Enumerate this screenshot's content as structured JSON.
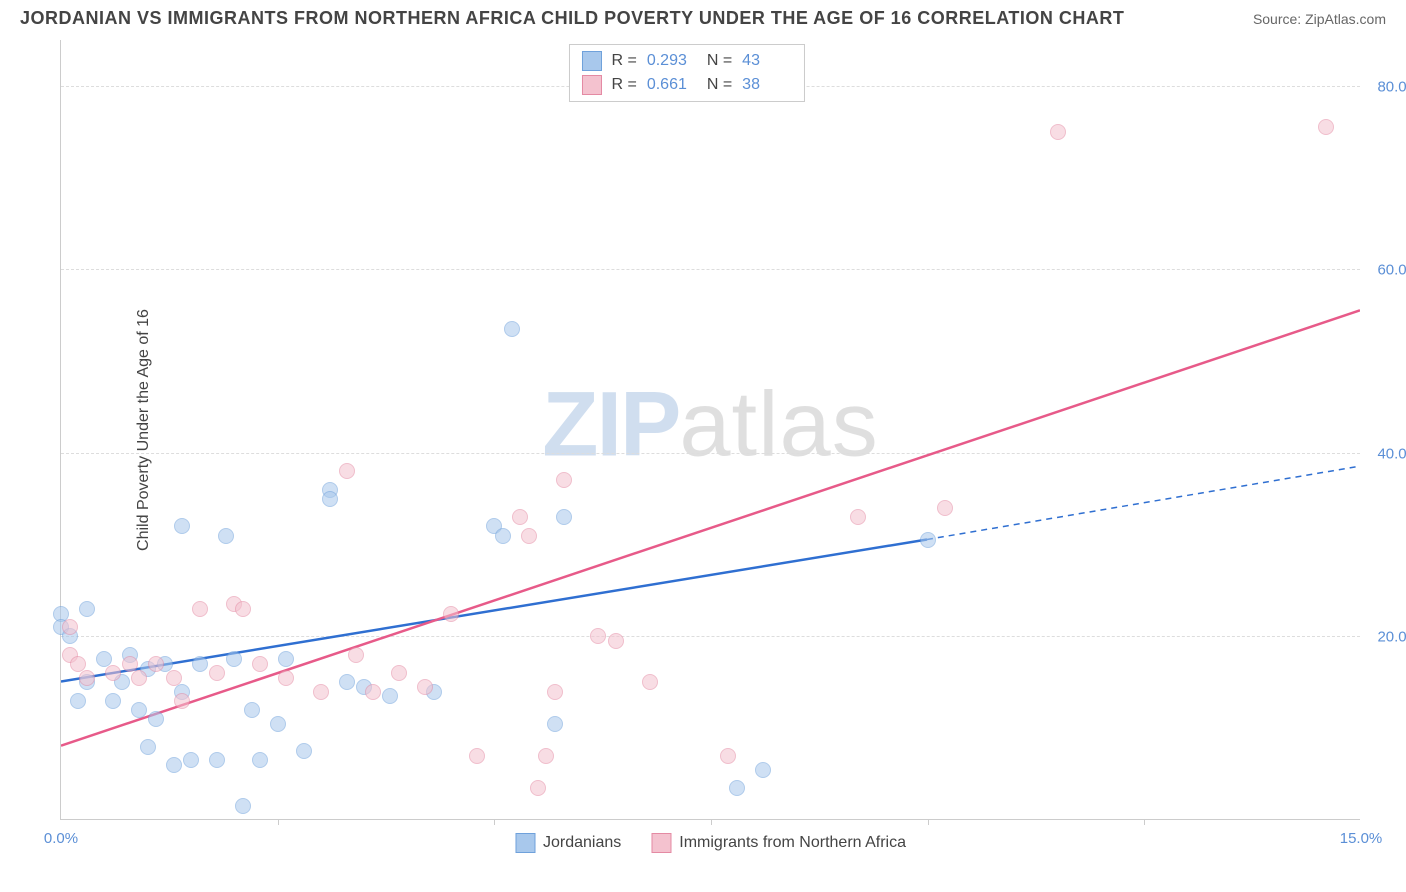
{
  "title": "JORDANIAN VS IMMIGRANTS FROM NORTHERN AFRICA CHILD POVERTY UNDER THE AGE OF 16 CORRELATION CHART",
  "source": "Source: ZipAtlas.com",
  "y_axis_label": "Child Poverty Under the Age of 16",
  "watermark_a": "ZIP",
  "watermark_b": "atlas",
  "chart": {
    "type": "scatter",
    "x_min": 0,
    "x_max": 15,
    "y_min": 0,
    "y_max": 85,
    "x_ticks": [
      {
        "v": 0.0,
        "label": "0.0%"
      },
      {
        "v": 15.0,
        "label": "15.0%"
      }
    ],
    "x_minor_ticks": [
      2.5,
      5.0,
      7.5,
      10.0,
      12.5
    ],
    "y_gridlines": [
      {
        "v": 20.0,
        "label": "20.0%"
      },
      {
        "v": 40.0,
        "label": "40.0%"
      },
      {
        "v": 60.0,
        "label": "60.0%"
      },
      {
        "v": 80.0,
        "label": "80.0%"
      }
    ],
    "background_color": "#ffffff",
    "grid_color": "#dddddd",
    "axis_color": "#cccccc",
    "tick_label_color": "#5b8fd6",
    "tick_fontsize": 15,
    "axis_label_fontsize": 16,
    "point_radius": 8,
    "point_opacity": 0.55
  },
  "series": [
    {
      "name": "Jordanians",
      "fill_color": "#a8c8ec",
      "stroke_color": "#6fa1db",
      "trend_color": "#2f6fd1",
      "trend_width": 2.5,
      "R": "0.293",
      "N": "43",
      "trend": {
        "x1": 0.0,
        "y1": 15.0,
        "x2_solid": 10.0,
        "y2_solid": 30.5,
        "x2_dash": 15.0,
        "y2_dash": 38.5
      },
      "points": [
        [
          0.0,
          22.5
        ],
        [
          0.0,
          21.0
        ],
        [
          0.1,
          20.0
        ],
        [
          0.2,
          13.0
        ],
        [
          0.3,
          15.0
        ],
        [
          0.3,
          23.0
        ],
        [
          0.5,
          17.5
        ],
        [
          0.6,
          13.0
        ],
        [
          0.7,
          15.0
        ],
        [
          0.8,
          18.0
        ],
        [
          0.9,
          12.0
        ],
        [
          1.0,
          16.5
        ],
        [
          1.0,
          8.0
        ],
        [
          1.1,
          11.0
        ],
        [
          1.2,
          17.0
        ],
        [
          1.3,
          6.0
        ],
        [
          1.4,
          14.0
        ],
        [
          1.4,
          32.0
        ],
        [
          1.5,
          6.5
        ],
        [
          1.6,
          17.0
        ],
        [
          1.8,
          6.5
        ],
        [
          1.9,
          31.0
        ],
        [
          2.0,
          17.5
        ],
        [
          2.1,
          1.5
        ],
        [
          2.2,
          12.0
        ],
        [
          2.3,
          6.5
        ],
        [
          2.5,
          10.5
        ],
        [
          2.6,
          17.5
        ],
        [
          2.8,
          7.5
        ],
        [
          3.1,
          36.0
        ],
        [
          3.1,
          35.0
        ],
        [
          3.3,
          15.0
        ],
        [
          3.5,
          14.5
        ],
        [
          3.8,
          13.5
        ],
        [
          4.3,
          14.0
        ],
        [
          5.0,
          32.0
        ],
        [
          5.1,
          31.0
        ],
        [
          5.2,
          53.5
        ],
        [
          5.7,
          10.5
        ],
        [
          5.8,
          33.0
        ],
        [
          7.8,
          3.5
        ],
        [
          8.1,
          5.5
        ],
        [
          10.0,
          30.5
        ]
      ]
    },
    {
      "name": "Immigrants from Northern Africa",
      "fill_color": "#f4c2cf",
      "stroke_color": "#e48aa3",
      "trend_color": "#e75a89",
      "trend_width": 2.5,
      "R": "0.661",
      "N": "38",
      "trend": {
        "x1": 0.0,
        "y1": 8.0,
        "x2_solid": 15.0,
        "y2_solid": 55.5,
        "x2_dash": 15.0,
        "y2_dash": 55.5
      },
      "points": [
        [
          0.1,
          18.0
        ],
        [
          0.1,
          21.0
        ],
        [
          0.2,
          17.0
        ],
        [
          0.3,
          15.5
        ],
        [
          0.6,
          16.0
        ],
        [
          0.8,
          17.0
        ],
        [
          0.9,
          15.5
        ],
        [
          1.1,
          17.0
        ],
        [
          1.3,
          15.5
        ],
        [
          1.4,
          13.0
        ],
        [
          1.6,
          23.0
        ],
        [
          1.8,
          16.0
        ],
        [
          2.0,
          23.5
        ],
        [
          2.1,
          23.0
        ],
        [
          2.3,
          17.0
        ],
        [
          2.6,
          15.5
        ],
        [
          3.0,
          14.0
        ],
        [
          3.3,
          38.0
        ],
        [
          3.4,
          18.0
        ],
        [
          3.6,
          14.0
        ],
        [
          3.9,
          16.0
        ],
        [
          4.2,
          14.5
        ],
        [
          4.5,
          22.5
        ],
        [
          4.8,
          7.0
        ],
        [
          5.3,
          33.0
        ],
        [
          5.4,
          31.0
        ],
        [
          5.5,
          3.5
        ],
        [
          5.6,
          7.0
        ],
        [
          5.7,
          14.0
        ],
        [
          5.8,
          37.0
        ],
        [
          6.2,
          20.0
        ],
        [
          6.4,
          19.5
        ],
        [
          6.8,
          15.0
        ],
        [
          7.7,
          7.0
        ],
        [
          9.2,
          33.0
        ],
        [
          10.2,
          34.0
        ],
        [
          11.5,
          75.0
        ],
        [
          14.6,
          75.5
        ]
      ]
    }
  ],
  "stat_legend": {
    "R_label": "R =",
    "N_label": "N ="
  }
}
